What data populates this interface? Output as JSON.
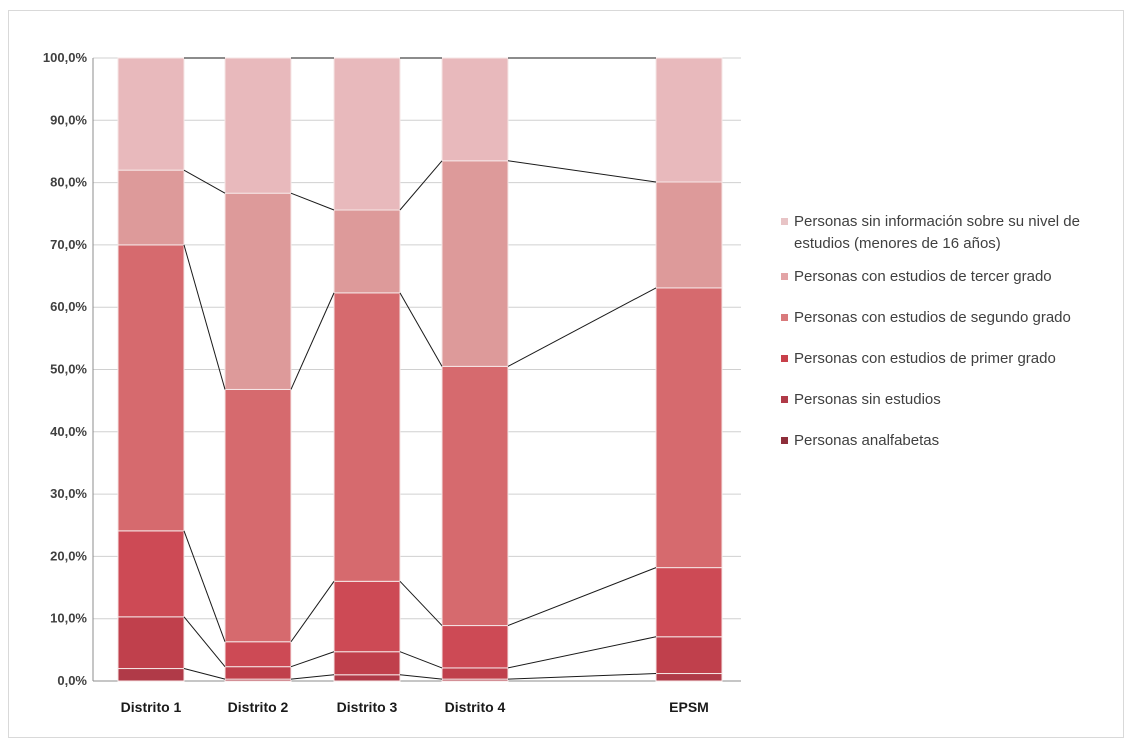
{
  "chart_data": {
    "type": "bar",
    "stacked": true,
    "percent": true,
    "categories": [
      "Distrito 1",
      "Distrito 2",
      "Distrito 3",
      "Distrito 4",
      "EPSM"
    ],
    "series": [
      {
        "name": "Personas analfabetas",
        "values": [
          2.0,
          0.3,
          1.0,
          0.3,
          1.2
        ],
        "color": "#b03a48"
      },
      {
        "name": "Personas sin estudios",
        "values": [
          8.3,
          2.0,
          3.7,
          1.8,
          5.9
        ],
        "color": "#c0404c"
      },
      {
        "name": "Personas con estudios de primer grado",
        "values": [
          13.8,
          4.0,
          11.3,
          6.8,
          11.1
        ],
        "color": "#cd4a55"
      },
      {
        "name": "Personas con estudios de segundo grado",
        "values": [
          45.9,
          40.5,
          46.3,
          41.6,
          44.9
        ],
        "color": "#d66a6e"
      },
      {
        "name": "Personas con estudios de tercer grado",
        "values": [
          12.0,
          31.5,
          13.3,
          33.0,
          17.0
        ],
        "color": "#dd9a9a"
      },
      {
        "name": "Personas sin información sobre su nivel de estudios (menores de 16 años)",
        "values": [
          18.0,
          21.7,
          24.4,
          16.5,
          19.9
        ],
        "color": "#e8b9bc"
      }
    ],
    "ylim": [
      0,
      100
    ],
    "yticks": [
      "0,0%",
      "10,0%",
      "20,0%",
      "30,0%",
      "40,0%",
      "50,0%",
      "60,0%",
      "70,0%",
      "80,0%",
      "90,0%",
      "100,0%"
    ],
    "grid": true,
    "legend_position": "right",
    "series_lines": true
  },
  "legend": {
    "items": [
      {
        "lines": [
          "Personas sin información sobre su nivel de",
          "estudios (menores de 16 años)"
        ],
        "color": "#e8c4c6"
      },
      {
        "lines": [
          "Personas con estudios de tercer grado"
        ],
        "color": "#e3a4a6"
      },
      {
        "lines": [
          "Personas con estudios de segundo grado"
        ],
        "color": "#d97a7c"
      },
      {
        "lines": [
          "Personas con estudios de primer grado"
        ],
        "color": "#c8404a"
      },
      {
        "lines": [
          "Personas sin estudios"
        ],
        "color": "#b03a48"
      },
      {
        "lines": [
          "Personas analfabetas"
        ],
        "color": "#8e2e3a"
      }
    ]
  }
}
